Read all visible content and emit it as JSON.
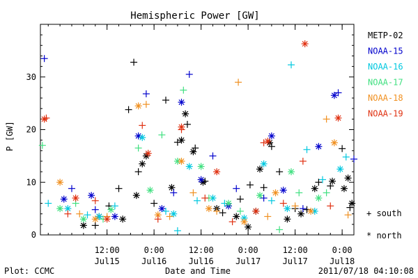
{
  "chart_data": {
    "type": "scatter",
    "title": "Hemispheric Power [GW]",
    "xlabel": "Date and Time",
    "ylabel": "P [GW]",
    "xlim": [
      "2011-07-14T19:00",
      "2011-07-18T03:00"
    ],
    "ylim": [
      0,
      40
    ],
    "y_ticks": [
      "0",
      "10",
      "20",
      "30"
    ],
    "x_ticks": [
      {
        "t": "2011-07-15T12:00",
        "time": "12:00",
        "date": "Jul15"
      },
      {
        "t": "2011-07-16T00:00",
        "time": "0:00",
        "date": "Jul16"
      },
      {
        "t": "2011-07-16T12:00",
        "time": "12:00",
        "date": "Jul16"
      },
      {
        "t": "2011-07-17T00:00",
        "time": "0:00",
        "date": "Jul17"
      },
      {
        "t": "2011-07-17T12:00",
        "time": "12:00",
        "date": "Jul17"
      },
      {
        "t": "2011-07-18T00:00",
        "time": "0:00",
        "date": "Jul18"
      }
    ],
    "marker_legend": {
      "south": "+ south",
      "north": "* north"
    },
    "series": [
      {
        "name": "METP-02",
        "color": "#000000",
        "south": [
          [
            "2011-07-15T09:00",
            1.8
          ],
          [
            "2011-07-15T12:30",
            5.5
          ],
          [
            "2011-07-15T15:00",
            8.8
          ],
          [
            "2011-07-15T17:30",
            23.8
          ],
          [
            "2011-07-15T18:50",
            32.8
          ],
          [
            "2011-07-15T20:00",
            12.0
          ],
          [
            "2011-07-16T00:00",
            6.0
          ],
          [
            "2011-07-16T03:00",
            25.6
          ],
          [
            "2011-07-16T06:00",
            17.6
          ],
          [
            "2011-07-16T08:30",
            21.0
          ],
          [
            "2011-07-16T10:30",
            16.5
          ],
          [
            "2011-07-16T13:00",
            10.2
          ],
          [
            "2011-07-16T17:30",
            4.2
          ],
          [
            "2011-07-16T22:00",
            6.8
          ],
          [
            "2011-07-17T00:30",
            9.5
          ],
          [
            "2011-07-17T04:00",
            9.0
          ],
          [
            "2011-07-17T06:00",
            16.8
          ],
          [
            "2011-07-17T08:00",
            12.0
          ],
          [
            "2011-07-17T12:00",
            5.0
          ],
          [
            "2011-07-17T15:00",
            4.8
          ],
          [
            "2011-07-17T18:00",
            10.0
          ],
          [
            "2011-07-17T21:00",
            9.3
          ],
          [
            "2011-07-18T00:00",
            16.4
          ],
          [
            "2011-07-18T02:00",
            5.2
          ]
        ],
        "north": [
          [
            "2011-07-15T06:00",
            1.8
          ],
          [
            "2011-07-15T10:00",
            3.5
          ],
          [
            "2011-07-15T16:00",
            3.0
          ],
          [
            "2011-07-15T19:30",
            7.5
          ],
          [
            "2011-07-15T21:00",
            13.5
          ],
          [
            "2011-07-15T22:00",
            15.0
          ],
          [
            "2011-07-16T04:30",
            9.0
          ],
          [
            "2011-07-16T07:00",
            18.0
          ],
          [
            "2011-07-16T08:00",
            23.0
          ],
          [
            "2011-07-16T10:00",
            15.8
          ],
          [
            "2011-07-16T12:30",
            10.0
          ],
          [
            "2011-07-16T16:00",
            5.0
          ],
          [
            "2011-07-16T21:00",
            3.5
          ],
          [
            "2011-07-17T00:00",
            1.5
          ],
          [
            "2011-07-17T02:00",
            4.5
          ],
          [
            "2011-07-17T03:00",
            12.5
          ],
          [
            "2011-07-17T05:30",
            17.5
          ],
          [
            "2011-07-17T10:00",
            3.0
          ],
          [
            "2011-07-17T13:30",
            4.0
          ],
          [
            "2011-07-17T17:00",
            8.8
          ],
          [
            "2011-07-17T21:30",
            10.2
          ],
          [
            "2011-07-18T00:30",
            8.8
          ],
          [
            "2011-07-18T01:30",
            10.8
          ],
          [
            "2011-07-18T02:30",
            6.0
          ]
        ]
      },
      {
        "name": "NOAA-15",
        "color": "#0000cc",
        "south": [
          [
            "2011-07-14T20:00",
            33.5
          ],
          [
            "2011-07-15T03:00",
            8.8
          ],
          [
            "2011-07-15T09:00",
            4.8
          ],
          [
            "2011-07-15T22:00",
            26.8
          ],
          [
            "2011-07-16T05:00",
            8.0
          ],
          [
            "2011-07-16T09:00",
            30.5
          ],
          [
            "2011-07-16T15:00",
            15.0
          ],
          [
            "2011-07-16T21:00",
            8.8
          ],
          [
            "2011-07-17T04:00",
            7.0
          ],
          [
            "2011-07-17T14:00",
            5.0
          ],
          [
            "2011-07-17T23:00",
            27.0
          ],
          [
            "2011-07-18T03:00",
            14.4
          ]
        ],
        "north": [
          [
            "2011-07-15T01:00",
            6.8
          ],
          [
            "2011-07-15T08:00",
            7.5
          ],
          [
            "2011-07-15T14:00",
            3.5
          ],
          [
            "2011-07-15T20:00",
            18.8
          ],
          [
            "2011-07-16T02:00",
            5.0
          ],
          [
            "2011-07-16T07:00",
            25.2
          ],
          [
            "2011-07-16T12:00",
            10.5
          ],
          [
            "2011-07-16T19:00",
            5.5
          ],
          [
            "2011-07-17T06:00",
            18.8
          ],
          [
            "2011-07-17T09:00",
            8.5
          ],
          [
            "2011-07-17T18:00",
            16.8
          ],
          [
            "2011-07-17T22:00",
            26.5
          ]
        ]
      },
      {
        "name": "NOAA-16",
        "color": "#00c8e0",
        "south": [
          [
            "2011-07-14T21:00",
            6.0
          ],
          [
            "2011-07-15T07:00",
            3.8
          ],
          [
            "2011-07-15T14:00",
            5.5
          ],
          [
            "2011-07-16T03:00",
            4.5
          ],
          [
            "2011-07-16T06:00",
            0.8
          ],
          [
            "2011-07-16T11:00",
            6.5
          ],
          [
            "2011-07-16T18:00",
            6.0
          ],
          [
            "2011-07-17T06:00",
            6.5
          ],
          [
            "2011-07-17T11:00",
            32.3
          ],
          [
            "2011-07-17T15:00",
            16.2
          ],
          [
            "2011-07-17T19:00",
            10.5
          ],
          [
            "2011-07-18T01:00",
            14.8
          ]
        ],
        "north": [
          [
            "2011-07-15T02:00",
            5.0
          ],
          [
            "2011-07-15T10:00",
            3.5
          ],
          [
            "2011-07-15T21:00",
            18.5
          ],
          [
            "2011-07-16T05:00",
            4.0
          ],
          [
            "2011-07-16T09:00",
            13.0
          ],
          [
            "2011-07-16T15:00",
            7.0
          ],
          [
            "2011-07-16T23:00",
            3.2
          ],
          [
            "2011-07-17T04:00",
            13.5
          ],
          [
            "2011-07-17T10:00",
            5.0
          ],
          [
            "2011-07-17T17:00",
            4.5
          ],
          [
            "2011-07-17T23:30",
            12.5
          ]
        ]
      },
      {
        "name": "NOAA-17",
        "color": "#40e080",
        "south": [
          [
            "2011-07-14T19:30",
            17.0
          ],
          [
            "2011-07-15T04:00",
            6.0
          ],
          [
            "2011-07-15T11:00",
            3.0
          ],
          [
            "2011-07-15T20:00",
            16.5
          ],
          [
            "2011-07-16T02:00",
            19.0
          ],
          [
            "2011-07-16T07:30",
            27.5
          ],
          [
            "2011-07-16T14:00",
            7.0
          ],
          [
            "2011-07-16T22:00",
            4.5
          ],
          [
            "2011-07-17T08:00",
            1.0
          ],
          [
            "2011-07-17T13:00",
            8.0
          ],
          [
            "2011-07-17T20:00",
            8.0
          ]
        ],
        "north": [
          [
            "2011-07-15T00:00",
            5.0
          ],
          [
            "2011-07-15T06:00",
            3.0
          ],
          [
            "2011-07-15T13:00",
            4.8
          ],
          [
            "2011-07-15T23:00",
            8.5
          ],
          [
            "2011-07-16T06:00",
            14.0
          ],
          [
            "2011-07-16T12:00",
            13.0
          ],
          [
            "2011-07-16T19:00",
            6.0
          ],
          [
            "2011-07-17T03:00",
            7.5
          ],
          [
            "2011-07-17T11:00",
            12.0
          ],
          [
            "2011-07-17T18:00",
            7.0
          ]
        ]
      },
      {
        "name": "NOAA-18",
        "color": "#f09020",
        "south": [
          [
            "2011-07-15T05:00",
            4.0
          ],
          [
            "2011-07-15T12:00",
            3.5
          ],
          [
            "2011-07-15T22:00",
            24.8
          ],
          [
            "2011-07-16T04:00",
            3.5
          ],
          [
            "2011-07-16T10:00",
            8.0
          ],
          [
            "2011-07-16T16:00",
            4.5
          ],
          [
            "2011-07-16T21:30",
            29.0
          ],
          [
            "2011-07-17T05:00",
            3.5
          ],
          [
            "2011-07-17T12:00",
            5.5
          ],
          [
            "2011-07-17T20:00",
            22.0
          ],
          [
            "2011-07-18T01:30",
            3.8
          ]
        ],
        "north": [
          [
            "2011-07-15T00:00",
            10.0
          ],
          [
            "2011-07-15T09:00",
            3.0
          ],
          [
            "2011-07-15T20:00",
            24.5
          ],
          [
            "2011-07-16T01:00",
            3.8
          ],
          [
            "2011-07-16T07:00",
            14.0
          ],
          [
            "2011-07-16T14:00",
            5.0
          ],
          [
            "2011-07-16T23:00",
            2.5
          ],
          [
            "2011-07-17T07:00",
            8.0
          ],
          [
            "2011-07-17T16:00",
            4.5
          ],
          [
            "2011-07-17T22:00",
            17.5
          ]
        ]
      },
      {
        "name": "NOAA-19",
        "color": "#e03010",
        "south": [
          [
            "2011-07-14T20:30",
            22.2
          ],
          [
            "2011-07-15T02:00",
            4.0
          ],
          [
            "2011-07-15T09:00",
            6.5
          ],
          [
            "2011-07-15T21:00",
            20.8
          ],
          [
            "2011-07-16T01:00",
            3.0
          ],
          [
            "2011-07-16T07:00",
            20.0
          ],
          [
            "2011-07-16T13:00",
            7.0
          ],
          [
            "2011-07-16T20:00",
            2.5
          ],
          [
            "2011-07-17T04:00",
            17.5
          ],
          [
            "2011-07-17T09:00",
            6.0
          ],
          [
            "2011-07-17T14:00",
            14.0
          ],
          [
            "2011-07-17T21:00",
            5.5
          ]
        ],
        "north": [
          [
            "2011-07-14T20:00",
            22.0
          ],
          [
            "2011-07-15T04:00",
            7.0
          ],
          [
            "2011-07-15T12:00",
            3.0
          ],
          [
            "2011-07-15T22:30",
            15.5
          ],
          [
            "2011-07-16T07:00",
            20.5
          ],
          [
            "2011-07-16T16:00",
            12.0
          ],
          [
            "2011-07-17T02:00",
            4.5
          ],
          [
            "2011-07-17T05:00",
            17.8
          ],
          [
            "2011-07-17T14:30",
            36.3
          ],
          [
            "2011-07-17T23:00",
            22.2
          ]
        ]
      }
    ]
  },
  "footer": {
    "plot_label": "Plot: CCMC",
    "timestamp": "2011/07/18 04:10:08"
  }
}
